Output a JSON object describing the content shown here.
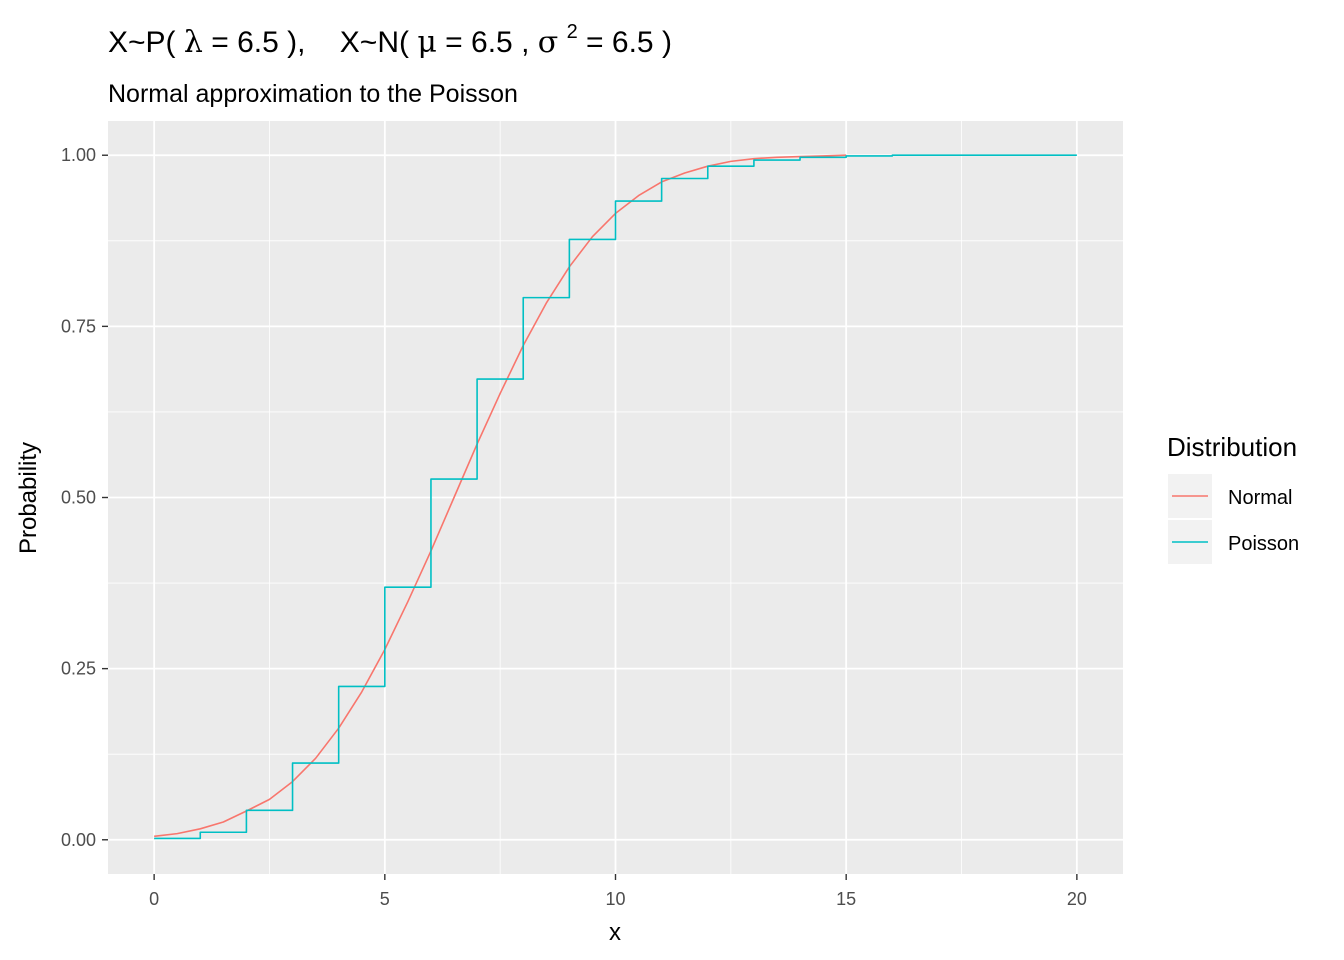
{
  "chart_data": {
    "type": "line",
    "title_parts": {
      "p1": "X~P(",
      "lambda": "λ",
      "p2": "= 6.5 ),",
      "p3": "X~N(",
      "mu": "μ",
      "p4": "= 6.5 ,",
      "sigma": "σ",
      "sup": "2",
      "p5": "= 6.5 )"
    },
    "subtitle": "Normal approximation to the Poisson",
    "xlabel": "x",
    "ylabel": "Probability",
    "xlim": [
      -1,
      21
    ],
    "ylim": [
      -0.05,
      1.05
    ],
    "x_ticks": [
      0,
      5,
      10,
      15,
      20
    ],
    "x_tick_labels": [
      "0",
      "5",
      "10",
      "15",
      "20"
    ],
    "y_ticks": [
      0,
      0.25,
      0.5,
      0.75,
      1
    ],
    "y_tick_labels": [
      "0.00",
      "0.25",
      "0.50",
      "0.75",
      "1.00"
    ],
    "grid": true,
    "legend": {
      "title": "Distribution",
      "position": "right",
      "entries": [
        "Normal",
        "Poisson"
      ]
    },
    "series": [
      {
        "name": "Normal",
        "color": "#F8766D",
        "kind": "line",
        "x": [
          0,
          0.5,
          1,
          1.5,
          2,
          2.5,
          3,
          3.5,
          4,
          4.5,
          5,
          5.5,
          6,
          6.5,
          7,
          7.5,
          8,
          8.5,
          9,
          9.5,
          10,
          10.5,
          11,
          11.5,
          12,
          12.5,
          13,
          13.5,
          14,
          14.5,
          15
        ],
        "values": [
          0.005,
          0.009,
          0.016,
          0.026,
          0.042,
          0.059,
          0.085,
          0.119,
          0.163,
          0.216,
          0.278,
          0.348,
          0.422,
          0.5,
          0.578,
          0.652,
          0.722,
          0.784,
          0.837,
          0.881,
          0.915,
          0.941,
          0.961,
          0.974,
          0.984,
          0.991,
          0.995,
          0.997,
          0.998,
          0.999,
          1.0
        ]
      },
      {
        "name": "Poisson",
        "color": "#00BFC4",
        "kind": "step",
        "x": [
          0,
          1,
          2,
          3,
          4,
          5,
          6,
          7,
          8,
          9,
          10,
          11,
          12,
          13,
          14,
          15,
          16,
          17,
          18,
          19,
          20
        ],
        "values": [
          0.002,
          0.011,
          0.043,
          0.112,
          0.224,
          0.369,
          0.527,
          0.673,
          0.792,
          0.877,
          0.933,
          0.966,
          0.984,
          0.993,
          0.997,
          0.999,
          1.0,
          1.0,
          1.0,
          1.0,
          1.0
        ]
      }
    ],
    "colors": {
      "panel_background": "#EBEBEB",
      "grid_major": "#FFFFFF",
      "tick_label": "#4D4D4D",
      "legend_key_background": "#F2F2F2"
    }
  }
}
